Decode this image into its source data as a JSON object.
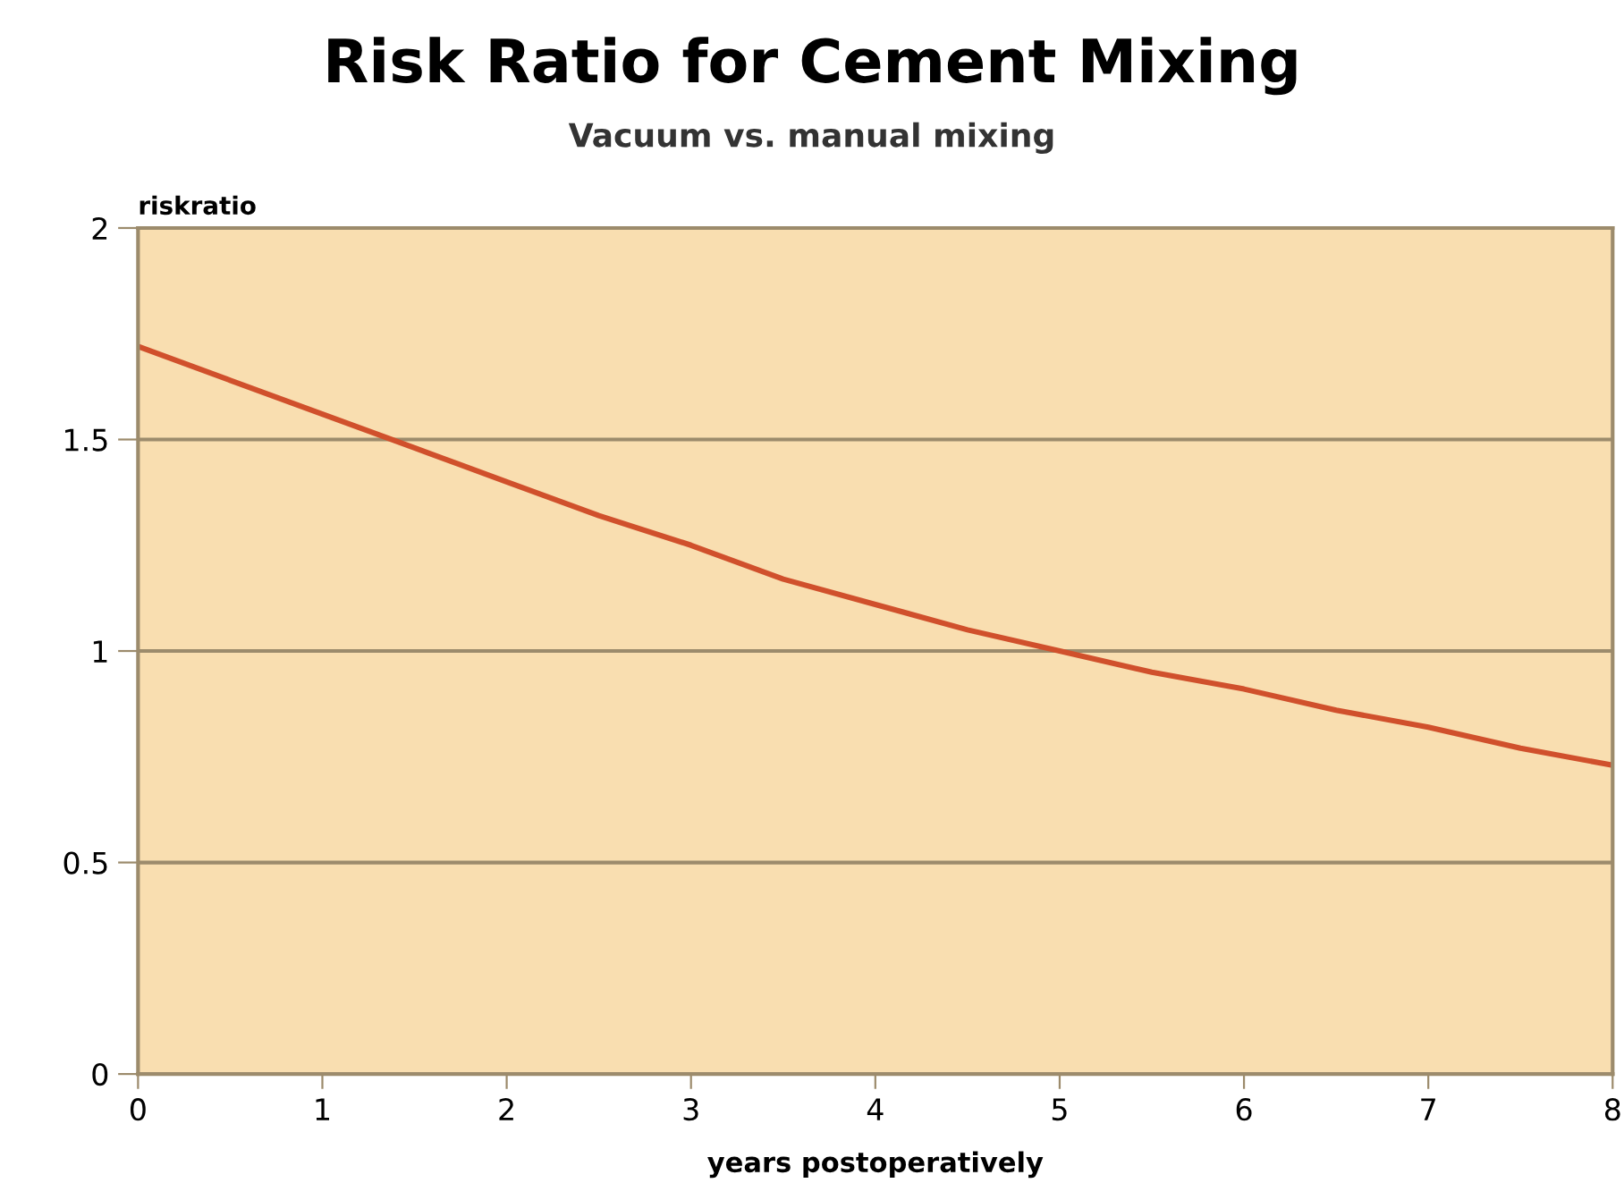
{
  "chart_data": {
    "type": "line",
    "title": "Risk Ratio for Cement Mixing",
    "subtitle": "Vacuum vs. manual mixing",
    "ylabel": "riskratio",
    "xlabel": "years postoperatively",
    "x": [
      0,
      0.5,
      1,
      1.5,
      2,
      2.5,
      3,
      3.5,
      4,
      4.5,
      5,
      5.5,
      6,
      6.5,
      7,
      7.5,
      8
    ],
    "series": [
      {
        "color": "#d0502c",
        "values": [
          1.72,
          1.64,
          1.56,
          1.48,
          1.4,
          1.32,
          1.25,
          1.17,
          1.11,
          1.05,
          1.0,
          0.95,
          0.91,
          0.86,
          0.82,
          0.77,
          0.73
        ]
      }
    ],
    "xlim": [
      0,
      8
    ],
    "xticks": [
      0,
      1,
      2,
      3,
      4,
      5,
      6,
      7,
      8
    ],
    "ylim": [
      0,
      2
    ],
    "yticks": [
      0,
      0.5,
      1,
      1.5,
      2
    ],
    "grid": "y",
    "marker": "none",
    "line_style": "solid"
  }
}
